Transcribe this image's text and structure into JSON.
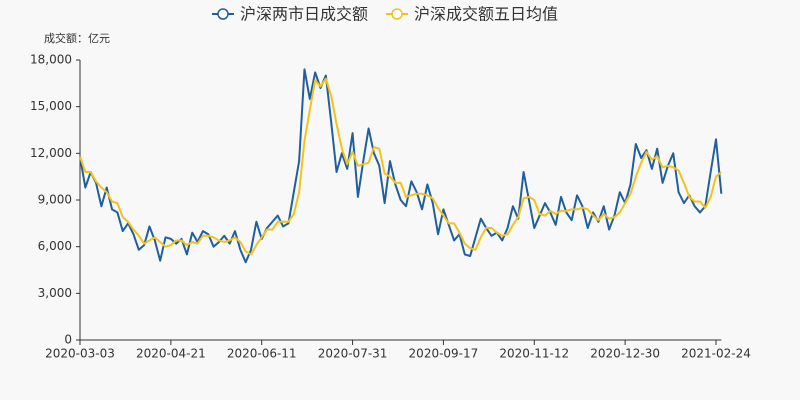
{
  "chart_data": {
    "type": "line",
    "y_axis_label": "成交额：亿元",
    "categories": [
      "2020-03-03",
      null,
      null,
      null,
      null,
      null,
      null,
      null,
      null,
      null,
      null,
      null,
      null,
      null,
      null,
      null,
      null,
      "2020-04-21",
      null,
      null,
      null,
      null,
      null,
      null,
      null,
      null,
      null,
      null,
      null,
      null,
      null,
      null,
      null,
      null,
      "2020-06-11",
      null,
      null,
      null,
      null,
      null,
      null,
      null,
      null,
      null,
      null,
      null,
      null,
      null,
      null,
      null,
      null,
      "2020-07-31",
      null,
      null,
      null,
      null,
      null,
      null,
      null,
      null,
      null,
      null,
      null,
      null,
      null,
      null,
      null,
      null,
      "2020-09-17",
      null,
      null,
      null,
      null,
      null,
      null,
      null,
      null,
      null,
      null,
      null,
      null,
      null,
      null,
      null,
      null,
      "2020-11-12",
      null,
      null,
      null,
      null,
      null,
      null,
      null,
      null,
      null,
      null,
      null,
      null,
      null,
      null,
      null,
      null,
      "2020-12-30",
      null,
      null,
      null,
      null,
      null,
      null,
      null,
      null,
      null,
      null,
      null,
      null,
      null,
      null,
      null,
      null,
      "2021-02-24",
      null
    ],
    "series": [
      {
        "name": "沪深两市日成交额",
        "color": "#1f5f9f",
        "values": [
          11800,
          9800,
          10800,
          10100,
          8600,
          9800,
          8400,
          8200,
          7000,
          7500,
          6800,
          5800,
          6100,
          7300,
          6400,
          5100,
          6600,
          6500,
          6200,
          6500,
          5500,
          6900,
          6300,
          7000,
          6800,
          6000,
          6300,
          6700,
          6200,
          7000,
          5800,
          5000,
          5800,
          7600,
          6500,
          7200,
          7600,
          8000,
          7300,
          7500,
          9500,
          11500,
          17400,
          15500,
          17200,
          16200,
          17000,
          14000,
          10800,
          12000,
          11000,
          13300,
          9200,
          11500,
          13600,
          12000,
          11200,
          8800,
          11500,
          10000,
          9000,
          8600,
          10200,
          9500,
          8400,
          10000,
          8800,
          6800,
          8400,
          7400,
          6400,
          6800,
          5500,
          5400,
          6600,
          7800,
          7200,
          6700,
          6900,
          6400,
          7200,
          8600,
          7800,
          10800,
          9000,
          7200,
          8000,
          8800,
          8200,
          7400,
          9200,
          8200,
          7700,
          9300,
          8600,
          7200,
          8200,
          7600,
          8600,
          7100,
          8000,
          9500,
          8800,
          10000,
          12600,
          11700,
          12200,
          11000,
          12300,
          10100,
          11200,
          12000,
          9500,
          8800,
          9300,
          8600,
          8200,
          8600,
          10800,
          12900,
          9400
        ]
      },
      {
        "name": "沪深成交额五日均值",
        "color": "#f5c21b",
        "values": [
          11800,
          10800,
          10800,
          10200,
          9800,
          9500,
          8900,
          8800,
          7900,
          7600,
          7100,
          6700,
          6200,
          6400,
          6600,
          6300,
          6000,
          6100,
          6400,
          6400,
          6100,
          6300,
          6200,
          6700,
          6700,
          6600,
          6400,
          6300,
          6400,
          6600,
          6300,
          5700,
          5500,
          6100,
          6600,
          7100,
          7100,
          7600,
          7600,
          7600,
          8100,
          9500,
          12800,
          14800,
          16700,
          16300,
          16800,
          15700,
          13900,
          12300,
          11300,
          12100,
          11200,
          11300,
          11400,
          12400,
          12300,
          10700,
          10500,
          10100,
          10100,
          9200,
          9300,
          9400,
          9400,
          9300,
          9100,
          8500,
          8000,
          7500,
          7500,
          6900,
          6200,
          5900,
          5800,
          6600,
          7200,
          7200,
          6900,
          6700,
          6800,
          7400,
          7900,
          9100,
          9200,
          9000,
          8100,
          8000,
          8300,
          8100,
          8300,
          8300,
          8400,
          8400,
          8500,
          8400,
          8000,
          7700,
          8100,
          7800,
          7900,
          8200,
          8800,
          9400,
          10500,
          11400,
          12100,
          11600,
          11800,
          11100,
          11200,
          11100,
          10900,
          10100,
          9200,
          8900,
          8900,
          8500,
          9200,
          10500,
          10800
        ]
      }
    ],
    "ylim": [
      0,
      18000
    ],
    "yticks": [
      0,
      {
        "value": 3000,
        "label": "3,000"
      },
      {
        "value": 6000,
        "label": "6,000"
      },
      {
        "value": 9000,
        "label": "9,000"
      },
      {
        "value": 12000,
        "label": "12,000"
      },
      {
        "value": 15000,
        "label": "15,000"
      },
      {
        "value": 18000,
        "label": "18,000"
      }
    ]
  }
}
